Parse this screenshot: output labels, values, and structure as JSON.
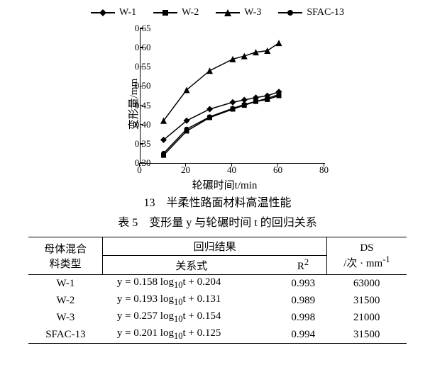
{
  "chart": {
    "type": "line",
    "ylabel": "变形量/mm",
    "xlabel": "轮碾时间t/min",
    "xlim": [
      0,
      80
    ],
    "ylim": [
      0.3,
      0.65
    ],
    "xtick_step": 20,
    "ytick_step": 0.05,
    "y_decimals": 2,
    "background_color": "#ffffff",
    "axis_color": "#000000",
    "series": [
      {
        "name": "W-1",
        "marker": "diamond",
        "color": "#000000",
        "x": [
          10,
          20,
          30,
          40,
          45,
          50,
          55,
          60
        ],
        "y": [
          0.36,
          0.41,
          0.44,
          0.458,
          0.464,
          0.47,
          0.475,
          0.485
        ]
      },
      {
        "name": "W-2",
        "marker": "square",
        "color": "#000000",
        "x": [
          10,
          20,
          30,
          40,
          45,
          50,
          55,
          60
        ],
        "y": [
          0.32,
          0.383,
          0.418,
          0.44,
          0.45,
          0.46,
          0.465,
          0.475
        ]
      },
      {
        "name": "W-3",
        "marker": "triangle",
        "color": "#000000",
        "x": [
          10,
          20,
          30,
          40,
          45,
          50,
          55,
          60
        ],
        "y": [
          0.41,
          0.49,
          0.54,
          0.57,
          0.578,
          0.588,
          0.592,
          0.612
        ]
      },
      {
        "name": "SFAC-13",
        "marker": "circle",
        "color": "#000000",
        "x": [
          10,
          20,
          30,
          40,
          45,
          50,
          55,
          60
        ],
        "y": [
          0.325,
          0.388,
          0.42,
          0.442,
          0.452,
          0.46,
          0.468,
          0.478
        ]
      }
    ]
  },
  "figure_caption_num": "13",
  "figure_caption_text": "半柔性路面材料高温性能",
  "table_caption": "表 5　变形量 y 与轮碾时间 t 的回归关系",
  "table": {
    "header": {
      "col1_line1": "母体混合",
      "col1_line2": "料类型",
      "col2_span": "回归结果",
      "col2a": "关系式",
      "col2b": "R",
      "col2b_sup": "2",
      "col3_line1": "DS",
      "col3_line2_a": "/次 · mm",
      "col3_line2_sup": "-1"
    },
    "rows": [
      {
        "name": "W-1",
        "formula_a": "y = 0.158 log",
        "formula_sub": "10",
        "formula_b": "t + 0.204",
        "r2": "0.993",
        "ds": "63000"
      },
      {
        "name": "W-2",
        "formula_a": "y = 0.193 log",
        "formula_sub": "10",
        "formula_b": "t + 0.131",
        "r2": "0.989",
        "ds": "31500"
      },
      {
        "name": "W-3",
        "formula_a": "y = 0.257 log",
        "formula_sub": "10",
        "formula_b": "t + 0.154",
        "r2": "0.998",
        "ds": "21000"
      },
      {
        "name": "SFAC-13",
        "formula_a": "y = 0.201 log",
        "formula_sub": "10",
        "formula_b": "t + 0.125",
        "r2": "0.994",
        "ds": "31500"
      }
    ]
  }
}
